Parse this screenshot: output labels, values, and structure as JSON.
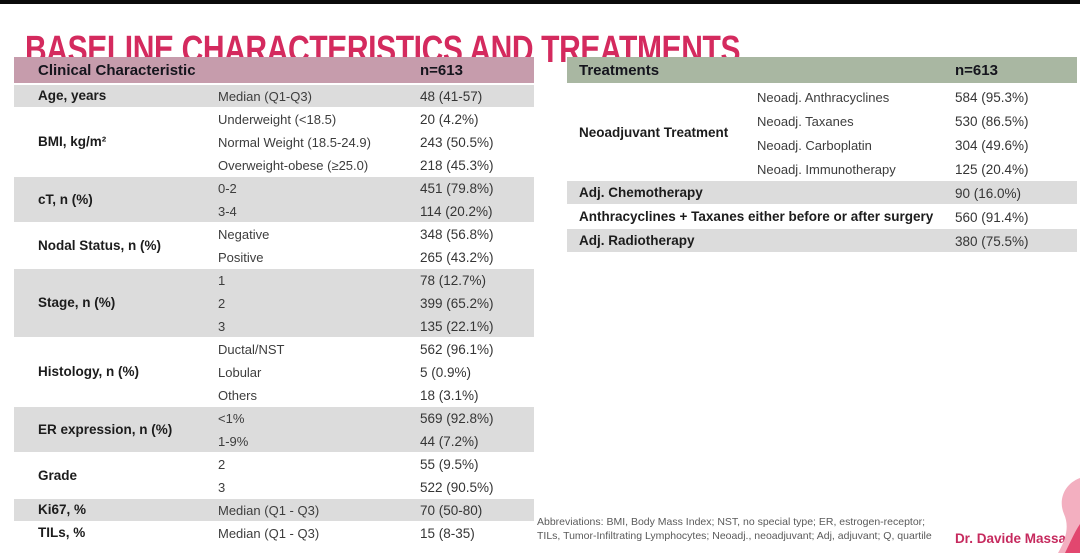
{
  "slide": {
    "title": "BASELINE CHARACTERISTICS AND TREATMENTS",
    "credit": "Dr. Davide Massa",
    "footnote_line1": "Abbreviations: BMI, Body Mass Index; NST, no special type; ER, estrogen-receptor;",
    "footnote_line2": "TILs, Tumor-Infiltrating Lymphocytes; Neoadj., neoadjuvant; Adj, adjuvant; Q, quartile"
  },
  "colors": {
    "title_accent": "#d42a5e",
    "clinical_header_bg": "#c69cac",
    "treatments_header_bg": "#a9b7a2",
    "row_shaded_bg": "#dcdcdc",
    "credit_text": "#c62a5e",
    "ribbon_light_pink": "#f3afc0",
    "ribbon_dark_pink": "#e2476f",
    "top_bar": "#0a0a0a"
  },
  "clinical_table": {
    "header_label": "Clinical Characteristic",
    "header_n": "n=613",
    "groups": [
      {
        "label": "Age, years",
        "shaded": true,
        "rows": [
          {
            "sub": "Median (Q1-Q3)",
            "value": "48 (41-57)"
          }
        ]
      },
      {
        "label": "BMI, kg/m²",
        "shaded": false,
        "rows": [
          {
            "sub": "Underweight (<18.5)",
            "value": "20 (4.2%)"
          },
          {
            "sub": "Normal Weight (18.5-24.9)",
            "value": "243 (50.5%)"
          },
          {
            "sub": "Overweight-obese (≥25.0)",
            "value": "218 (45.3%)"
          }
        ]
      },
      {
        "label": "cT, n (%)",
        "shaded": true,
        "rows": [
          {
            "sub": "0-2",
            "value": "451 (79.8%)"
          },
          {
            "sub": "3-4",
            "value": "114 (20.2%)"
          }
        ]
      },
      {
        "label": "Nodal Status, n (%)",
        "shaded": false,
        "rows": [
          {
            "sub": "Negative",
            "value": "348 (56.8%)"
          },
          {
            "sub": "Positive",
            "value": "265 (43.2%)"
          }
        ]
      },
      {
        "label": "Stage, n (%)",
        "shaded": true,
        "rows": [
          {
            "sub": "1",
            "value": "78 (12.7%)"
          },
          {
            "sub": "2",
            "value": "399 (65.2%)"
          },
          {
            "sub": "3",
            "value": "135 (22.1%)"
          }
        ]
      },
      {
        "label": "Histology, n (%)",
        "shaded": false,
        "rows": [
          {
            "sub": "Ductal/NST",
            "value": "562 (96.1%)"
          },
          {
            "sub": "Lobular",
            "value": "5 (0.9%)"
          },
          {
            "sub": "Others",
            "value": "18 (3.1%)"
          }
        ]
      },
      {
        "label": "ER expression, n (%)",
        "shaded": true,
        "rows": [
          {
            "sub": "<1%",
            "value": "569 (92.8%)"
          },
          {
            "sub": "1-9%",
            "value": "44 (7.2%)"
          }
        ]
      },
      {
        "label": "Grade",
        "shaded": false,
        "rows": [
          {
            "sub": "2",
            "value": "55 (9.5%)"
          },
          {
            "sub": "3",
            "value": "522 (90.5%)"
          }
        ]
      },
      {
        "label": "Ki67, %",
        "shaded": true,
        "rows": [
          {
            "sub": "Median (Q1 - Q3)",
            "value": "70 (50-80)"
          }
        ]
      },
      {
        "label": "TILs, %",
        "shaded": false,
        "rows": [
          {
            "sub": "Median (Q1 - Q3)",
            "value": "15 (8-35)"
          }
        ]
      }
    ]
  },
  "treatments_table": {
    "header_label": "Treatments",
    "header_n": "n=613",
    "groups": [
      {
        "label": "Neoadjuvant Treatment",
        "shaded": false,
        "wide": false,
        "rows": [
          {
            "sub": "Neoadj. Anthracyclines",
            "value": "584 (95.3%)"
          },
          {
            "sub": "Neoadj. Taxanes",
            "value": "530 (86.5%)"
          },
          {
            "sub": "Neoadj. Carboplatin",
            "value": "304 (49.6%)"
          },
          {
            "sub": "Neoadj. Immunotherapy",
            "value": "125 (20.4%)"
          }
        ]
      },
      {
        "label": "Adj. Chemotherapy",
        "shaded": true,
        "wide": true,
        "rows": [
          {
            "value": "90 (16.0%)"
          }
        ]
      },
      {
        "label": "Anthracyclines + Taxanes either before or after surgery",
        "shaded": false,
        "wide": true,
        "rows": [
          {
            "value": "560 (91.4%)"
          }
        ]
      },
      {
        "label": "Adj. Radiotherapy",
        "shaded": true,
        "wide": true,
        "rows": [
          {
            "value": "380 (75.5%)"
          }
        ]
      }
    ]
  }
}
